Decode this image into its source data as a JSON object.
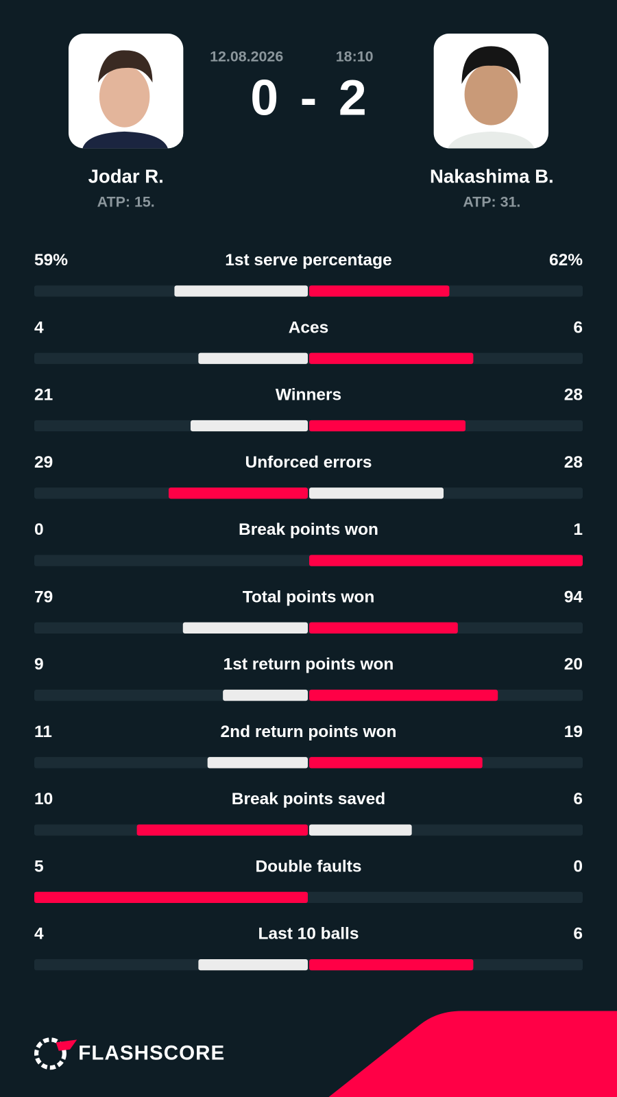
{
  "header": {
    "date": "12.08.2026",
    "time": "18:10",
    "score_home": 0,
    "score_separator": "-",
    "score_away": 2,
    "home": {
      "name": "Jodar R.",
      "rank": "ATP: 15."
    },
    "away": {
      "name": "Nakashima B.",
      "rank": "ATP: 31."
    }
  },
  "stats": [
    {
      "label": "1st serve percentage",
      "home": {
        "value": 59,
        "label": "59%"
      },
      "away": {
        "value": 62,
        "label": "62%"
      }
    },
    {
      "label": "Aces",
      "home": 4,
      "away": 6
    },
    {
      "label": "Winners",
      "home": 21,
      "away": 28
    },
    {
      "label": "Unforced errors",
      "home": 29,
      "away": 28
    },
    {
      "label": "Break points won",
      "home": 0,
      "away": 1
    },
    {
      "label": "Total points won",
      "home": 79,
      "away": 94
    },
    {
      "label": "1st return points won",
      "home": 9,
      "away": 20
    },
    {
      "label": "2nd return points won",
      "home": 11,
      "away": 19
    },
    {
      "label": "Break points saved",
      "home": 10,
      "away": 6
    },
    {
      "label": "Double faults",
      "home": 5,
      "away": 0
    },
    {
      "label": "Last 10 balls",
      "home": 4,
      "away": 6
    }
  ],
  "footer": {
    "brand": "FLASHSCORE"
  }
}
